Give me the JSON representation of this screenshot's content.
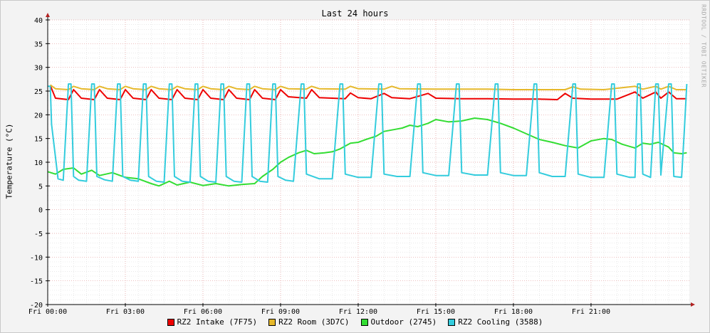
{
  "chart_data": {
    "type": "line",
    "title": "Last 24 hours",
    "ylabel": "Temperature (°C)",
    "watermark": "RRDTOOL / TOBI OETIKER",
    "ylim": [
      -20,
      40
    ],
    "ytick_step": 5,
    "xlim_hours": [
      0,
      24.8
    ],
    "xticks": [
      {
        "h": 0,
        "label": "Fri 00:00"
      },
      {
        "h": 3,
        "label": "Fri 03:00"
      },
      {
        "h": 6,
        "label": "Fri 06:00"
      },
      {
        "h": 9,
        "label": "Fri 09:00"
      },
      {
        "h": 12,
        "label": "Fri 12:00"
      },
      {
        "h": 15,
        "label": "Fri 15:00"
      },
      {
        "h": 18,
        "label": "Fri 18:00"
      },
      {
        "h": 21,
        "label": "Fri 21:00"
      }
    ],
    "series": [
      {
        "name": "RZ2 Intake (7F75)",
        "color": "#ee0000",
        "points": [
          [
            0.1,
            26.2
          ],
          [
            0.3,
            23.5
          ],
          [
            0.8,
            23.2
          ],
          [
            1.0,
            25.3
          ],
          [
            1.3,
            23.5
          ],
          [
            1.8,
            23.2
          ],
          [
            2.0,
            25.3
          ],
          [
            2.3,
            23.5
          ],
          [
            2.8,
            23.2
          ],
          [
            3.0,
            25.3
          ],
          [
            3.3,
            23.5
          ],
          [
            3.8,
            23.2
          ],
          [
            4.0,
            25.3
          ],
          [
            4.3,
            23.5
          ],
          [
            4.8,
            23.2
          ],
          [
            5.0,
            25.3
          ],
          [
            5.3,
            23.5
          ],
          [
            5.8,
            23.2
          ],
          [
            6.0,
            25.3
          ],
          [
            6.3,
            23.5
          ],
          [
            6.8,
            23.2
          ],
          [
            7.0,
            25.3
          ],
          [
            7.3,
            23.5
          ],
          [
            7.8,
            23.2
          ],
          [
            8.0,
            25.3
          ],
          [
            8.3,
            23.5
          ],
          [
            8.8,
            23.2
          ],
          [
            9.0,
            25.3
          ],
          [
            9.3,
            23.8
          ],
          [
            10.0,
            23.5
          ],
          [
            10.2,
            25.3
          ],
          [
            10.5,
            23.6
          ],
          [
            11.5,
            23.4
          ],
          [
            11.7,
            24.6
          ],
          [
            12.0,
            23.6
          ],
          [
            12.5,
            23.4
          ],
          [
            13.0,
            24.5
          ],
          [
            13.3,
            23.6
          ],
          [
            14.0,
            23.4
          ],
          [
            14.7,
            24.5
          ],
          [
            15.0,
            23.5
          ],
          [
            16.0,
            23.4
          ],
          [
            17.0,
            23.4
          ],
          [
            18.0,
            23.3
          ],
          [
            19.0,
            23.3
          ],
          [
            19.7,
            23.2
          ],
          [
            20.0,
            24.5
          ],
          [
            20.3,
            23.5
          ],
          [
            21.0,
            23.3
          ],
          [
            22.0,
            23.3
          ],
          [
            22.7,
            24.8
          ],
          [
            23.0,
            23.5
          ],
          [
            23.5,
            24.8
          ],
          [
            23.7,
            23.5
          ],
          [
            24.0,
            24.8
          ],
          [
            24.3,
            23.4
          ],
          [
            24.7,
            23.4
          ]
        ]
      },
      {
        "name": "RZ2 Room (3D7C)",
        "color": "#e6b82a",
        "points": [
          [
            0.1,
            26.3
          ],
          [
            0.3,
            25.5
          ],
          [
            0.8,
            25.3
          ],
          [
            1.0,
            26.0
          ],
          [
            1.3,
            25.5
          ],
          [
            1.8,
            25.3
          ],
          [
            2.0,
            26.0
          ],
          [
            2.3,
            25.5
          ],
          [
            2.8,
            25.3
          ],
          [
            3.0,
            26.0
          ],
          [
            3.3,
            25.5
          ],
          [
            3.8,
            25.3
          ],
          [
            4.0,
            26.0
          ],
          [
            4.3,
            25.5
          ],
          [
            4.8,
            25.3
          ],
          [
            5.0,
            26.0
          ],
          [
            5.3,
            25.5
          ],
          [
            5.8,
            25.3
          ],
          [
            6.0,
            26.0
          ],
          [
            6.3,
            25.5
          ],
          [
            6.8,
            25.3
          ],
          [
            7.0,
            26.0
          ],
          [
            7.3,
            25.5
          ],
          [
            7.8,
            25.3
          ],
          [
            8.0,
            26.0
          ],
          [
            8.3,
            25.5
          ],
          [
            8.8,
            25.3
          ],
          [
            9.0,
            26.0
          ],
          [
            9.3,
            25.5
          ],
          [
            10.0,
            25.4
          ],
          [
            10.2,
            26.0
          ],
          [
            10.5,
            25.5
          ],
          [
            11.5,
            25.4
          ],
          [
            11.7,
            26.0
          ],
          [
            12.0,
            25.5
          ],
          [
            13.0,
            25.4
          ],
          [
            13.3,
            26.0
          ],
          [
            13.6,
            25.5
          ],
          [
            15.0,
            25.4
          ],
          [
            16.0,
            25.4
          ],
          [
            17.0,
            25.4
          ],
          [
            18.0,
            25.3
          ],
          [
            19.0,
            25.3
          ],
          [
            20.0,
            25.3
          ],
          [
            20.3,
            25.9
          ],
          [
            20.6,
            25.4
          ],
          [
            21.5,
            25.3
          ],
          [
            22.7,
            26.0
          ],
          [
            23.0,
            25.4
          ],
          [
            23.5,
            26.0
          ],
          [
            23.7,
            25.4
          ],
          [
            24.0,
            26.0
          ],
          [
            24.3,
            25.3
          ],
          [
            24.7,
            25.3
          ]
        ]
      },
      {
        "name": "Outdoor (2745)",
        "color": "#33dd33",
        "points": [
          [
            0.0,
            8.0
          ],
          [
            0.3,
            7.5
          ],
          [
            0.6,
            8.5
          ],
          [
            1.0,
            8.8
          ],
          [
            1.3,
            7.5
          ],
          [
            1.7,
            8.3
          ],
          [
            2.0,
            7.2
          ],
          [
            2.5,
            7.8
          ],
          [
            3.0,
            6.8
          ],
          [
            3.5,
            6.5
          ],
          [
            4.0,
            5.5
          ],
          [
            4.3,
            5.0
          ],
          [
            4.7,
            6.0
          ],
          [
            5.0,
            5.2
          ],
          [
            5.5,
            5.8
          ],
          [
            6.0,
            5.1
          ],
          [
            6.5,
            5.5
          ],
          [
            7.0,
            5.0
          ],
          [
            7.5,
            5.3
          ],
          [
            8.0,
            5.5
          ],
          [
            8.3,
            7.0
          ],
          [
            8.7,
            8.5
          ],
          [
            9.0,
            10.0
          ],
          [
            9.3,
            11.0
          ],
          [
            9.7,
            12.0
          ],
          [
            10.0,
            12.5
          ],
          [
            10.3,
            11.8
          ],
          [
            10.7,
            12.0
          ],
          [
            11.0,
            12.2
          ],
          [
            11.3,
            12.8
          ],
          [
            11.7,
            14.0
          ],
          [
            12.0,
            14.2
          ],
          [
            12.3,
            14.8
          ],
          [
            12.7,
            15.5
          ],
          [
            13.0,
            16.5
          ],
          [
            13.3,
            16.8
          ],
          [
            13.7,
            17.2
          ],
          [
            14.0,
            17.8
          ],
          [
            14.3,
            17.5
          ],
          [
            14.7,
            18.2
          ],
          [
            15.0,
            19.0
          ],
          [
            15.5,
            18.5
          ],
          [
            16.0,
            18.7
          ],
          [
            16.5,
            19.3
          ],
          [
            17.0,
            19.0
          ],
          [
            17.5,
            18.2
          ],
          [
            18.0,
            17.2
          ],
          [
            18.5,
            16.0
          ],
          [
            19.0,
            14.8
          ],
          [
            19.5,
            14.2
          ],
          [
            20.0,
            13.5
          ],
          [
            20.5,
            13.0
          ],
          [
            21.0,
            14.5
          ],
          [
            21.5,
            15.0
          ],
          [
            21.8,
            14.8
          ],
          [
            22.2,
            13.8
          ],
          [
            22.7,
            13.0
          ],
          [
            23.0,
            14.0
          ],
          [
            23.3,
            13.8
          ],
          [
            23.6,
            14.2
          ],
          [
            24.0,
            13.2
          ],
          [
            24.2,
            12.0
          ],
          [
            24.5,
            11.8
          ],
          [
            24.7,
            12.0
          ]
        ]
      },
      {
        "name": "RZ2 Cooling (3588)",
        "color": "#33ccdd",
        "points": [
          [
            0.0,
            26.0
          ],
          [
            0.1,
            26.0
          ],
          [
            0.15,
            18.0
          ],
          [
            0.4,
            6.5
          ],
          [
            0.6,
            6.2
          ],
          [
            0.8,
            26.5
          ],
          [
            0.9,
            26.5
          ],
          [
            1.0,
            7.0
          ],
          [
            1.2,
            6.2
          ],
          [
            1.5,
            6.0
          ],
          [
            1.7,
            26.5
          ],
          [
            1.8,
            26.5
          ],
          [
            1.9,
            7.0
          ],
          [
            2.2,
            6.3
          ],
          [
            2.5,
            6.0
          ],
          [
            2.7,
            26.5
          ],
          [
            2.8,
            26.5
          ],
          [
            2.9,
            7.0
          ],
          [
            3.2,
            6.2
          ],
          [
            3.5,
            6.0
          ],
          [
            3.7,
            26.5
          ],
          [
            3.8,
            26.5
          ],
          [
            3.9,
            7.0
          ],
          [
            4.2,
            6.0
          ],
          [
            4.5,
            5.8
          ],
          [
            4.7,
            26.5
          ],
          [
            4.8,
            26.5
          ],
          [
            4.9,
            7.0
          ],
          [
            5.2,
            6.0
          ],
          [
            5.5,
            5.8
          ],
          [
            5.7,
            26.5
          ],
          [
            5.8,
            26.5
          ],
          [
            5.9,
            7.0
          ],
          [
            6.2,
            6.0
          ],
          [
            6.5,
            5.8
          ],
          [
            6.7,
            26.5
          ],
          [
            6.8,
            26.5
          ],
          [
            6.9,
            7.0
          ],
          [
            7.2,
            6.0
          ],
          [
            7.5,
            5.8
          ],
          [
            7.7,
            26.5
          ],
          [
            7.8,
            26.5
          ],
          [
            7.9,
            7.0
          ],
          [
            8.2,
            6.0
          ],
          [
            8.5,
            5.8
          ],
          [
            8.7,
            26.5
          ],
          [
            8.8,
            26.5
          ],
          [
            8.9,
            7.0
          ],
          [
            9.2,
            6.2
          ],
          [
            9.5,
            6.0
          ],
          [
            9.8,
            26.5
          ],
          [
            9.9,
            26.5
          ],
          [
            10.0,
            7.5
          ],
          [
            10.5,
            6.5
          ],
          [
            11.0,
            6.5
          ],
          [
            11.3,
            26.5
          ],
          [
            11.4,
            26.5
          ],
          [
            11.5,
            7.5
          ],
          [
            12.0,
            6.8
          ],
          [
            12.5,
            6.8
          ],
          [
            12.8,
            26.5
          ],
          [
            12.9,
            26.5
          ],
          [
            13.0,
            7.5
          ],
          [
            13.5,
            7.0
          ],
          [
            14.0,
            7.0
          ],
          [
            14.3,
            26.5
          ],
          [
            14.4,
            26.5
          ],
          [
            14.5,
            7.8
          ],
          [
            15.0,
            7.2
          ],
          [
            15.5,
            7.2
          ],
          [
            15.8,
            26.5
          ],
          [
            15.9,
            26.5
          ],
          [
            16.0,
            7.8
          ],
          [
            16.5,
            7.3
          ],
          [
            17.0,
            7.3
          ],
          [
            17.3,
            26.5
          ],
          [
            17.4,
            26.5
          ],
          [
            17.5,
            7.8
          ],
          [
            18.0,
            7.2
          ],
          [
            18.5,
            7.2
          ],
          [
            18.8,
            26.5
          ],
          [
            18.9,
            26.5
          ],
          [
            19.0,
            7.8
          ],
          [
            19.5,
            7.0
          ],
          [
            20.0,
            7.0
          ],
          [
            20.3,
            26.5
          ],
          [
            20.4,
            26.5
          ],
          [
            20.5,
            7.5
          ],
          [
            21.0,
            6.8
          ],
          [
            21.5,
            6.8
          ],
          [
            21.8,
            26.5
          ],
          [
            21.9,
            26.5
          ],
          [
            22.0,
            7.5
          ],
          [
            22.5,
            6.8
          ],
          [
            22.7,
            6.8
          ],
          [
            22.8,
            26.5
          ],
          [
            22.9,
            26.5
          ],
          [
            23.0,
            7.5
          ],
          [
            23.3,
            6.8
          ],
          [
            23.5,
            26.5
          ],
          [
            23.6,
            26.5
          ],
          [
            23.7,
            7.3
          ],
          [
            24.0,
            26.5
          ],
          [
            24.1,
            26.5
          ],
          [
            24.2,
            7.0
          ],
          [
            24.5,
            6.8
          ],
          [
            24.6,
            16.0
          ],
          [
            24.7,
            26.5
          ]
        ]
      }
    ]
  }
}
